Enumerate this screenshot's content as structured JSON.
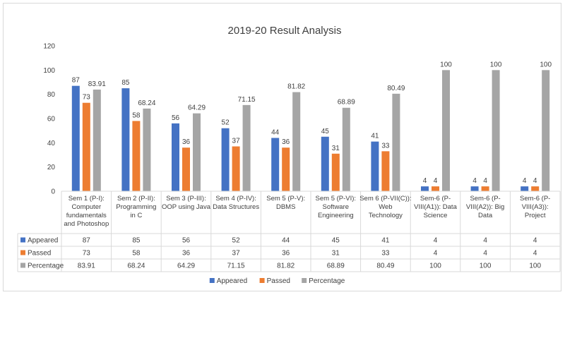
{
  "chart_data": {
    "type": "bar",
    "title": "2019-20 Result Analysis",
    "ylim": [
      0,
      120
    ],
    "yticks": [
      0,
      20,
      40,
      60,
      80,
      100,
      120
    ],
    "legend_position": "bottom",
    "gridlines": false,
    "data_table": true,
    "categories": [
      [
        "Sem 1 (P-I):",
        "Computer",
        "fundamentals",
        "and Photoshop"
      ],
      [
        "Sem 2 (P-II):",
        "Programming",
        "in C"
      ],
      [
        "Sem 3 (P-III):",
        "OOP using Java"
      ],
      [
        "Sem 4 (P-IV):",
        "Data Structures"
      ],
      [
        "Sem 5 (P-V):",
        "DBMS"
      ],
      [
        "Sem 5 (P-VI):",
        "Software",
        "Engineering"
      ],
      [
        "Sem 6 (P-VII(C)):",
        "Web",
        "Technology"
      ],
      [
        "Sem-6 (P-",
        "VIII(A1)): Data",
        "Science"
      ],
      [
        "Sem-6 (P-",
        "VIII(A2)): Big",
        "Data"
      ],
      [
        "Sem-6 (P-",
        "VIII(A3)):",
        "Project"
      ]
    ],
    "series": [
      {
        "name": "Appeared",
        "color": "#4472c4",
        "values": [
          87,
          85,
          56,
          52,
          44,
          45,
          41,
          4,
          4,
          4
        ],
        "labels": [
          "87",
          "85",
          "56",
          "52",
          "44",
          "45",
          "41",
          "4",
          "4",
          "4"
        ]
      },
      {
        "name": "Passed",
        "color": "#ed7d31",
        "values": [
          73,
          58,
          36,
          37,
          36,
          31,
          33,
          4,
          4,
          4
        ],
        "labels": [
          "73",
          "58",
          "36",
          "37",
          "36",
          "31",
          "33",
          "4",
          "4",
          "4"
        ]
      },
      {
        "name": "Percentage",
        "color": "#a5a5a5",
        "values": [
          83.91,
          68.24,
          64.29,
          71.15,
          81.82,
          68.89,
          80.49,
          100,
          100,
          100
        ],
        "labels": [
          "83.91",
          "68.24",
          "64.29",
          "71.15",
          "81.82",
          "68.89",
          "80.49",
          "100",
          "100",
          "100"
        ]
      }
    ]
  }
}
